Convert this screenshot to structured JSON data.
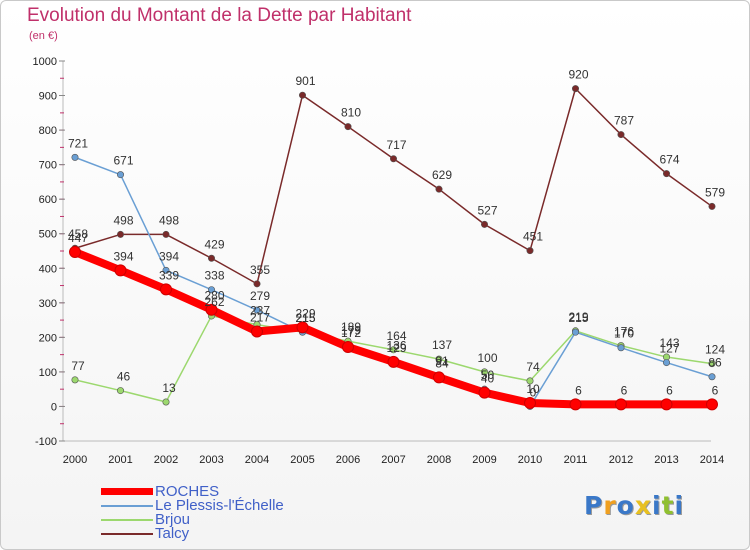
{
  "title": "Evolution du Montant de la Dette par Habitant",
  "unit": "(en €)",
  "logo": {
    "text": "Proxiti",
    "colors": [
      "#3a78c8",
      "#f0a020",
      "#3a78c8",
      "#e8c020",
      "#3a78c8",
      "#90c030",
      "#3a78c8"
    ]
  },
  "chart_data": {
    "type": "line",
    "title": "Evolution du Montant de la Dette par Habitant",
    "ylabel": "(en €)",
    "xlabel": "",
    "ylim": [
      -100,
      1000
    ],
    "yticks": [
      -100,
      0,
      100,
      200,
      300,
      400,
      500,
      600,
      700,
      800,
      900,
      1000
    ],
    "x": [
      "2000",
      "2001",
      "2002",
      "2003",
      "2004",
      "2005",
      "2006",
      "2007",
      "2008",
      "2009",
      "2010",
      "2011",
      "2012",
      "2013",
      "2014"
    ],
    "grid": false,
    "legend": "bottom-left",
    "series": [
      {
        "name": "ROCHES",
        "color": "#ff0000",
        "values": [
          447,
          394,
          339,
          280,
          217,
          229,
          172,
          129,
          84,
          40,
          10,
          6,
          6,
          6,
          6
        ]
      },
      {
        "name": "Le Plessis-l'Échelle",
        "color": "#6a9fd4",
        "values": [
          721,
          671,
          394,
          338,
          279,
          215,
          179,
          136,
          91,
          50,
          0,
          215,
          170,
          127,
          86
        ]
      },
      {
        "name": "Brjou",
        "color": "#9cd86e",
        "values": [
          77,
          46,
          13,
          262,
          237,
          215,
          189,
          164,
          137,
          100,
          74,
          219,
          176,
          143,
          124
        ]
      },
      {
        "name": "Talcy",
        "color": "#7a2a2a",
        "values": [
          458,
          498,
          498,
          429,
          355,
          901,
          810,
          717,
          629,
          527,
          451,
          920,
          787,
          674,
          579
        ]
      }
    ]
  }
}
